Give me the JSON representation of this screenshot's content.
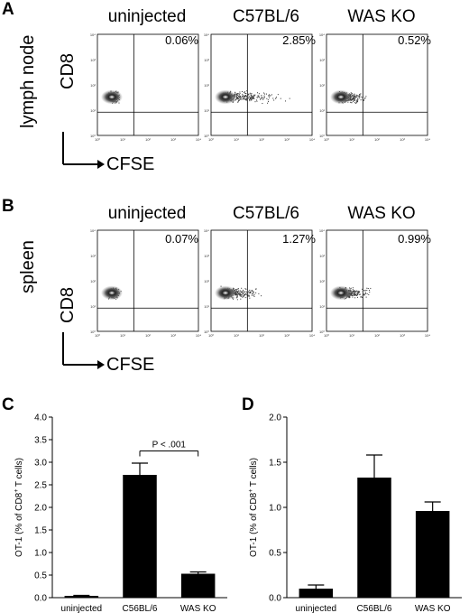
{
  "panelA": {
    "letter": "A",
    "tissue": "lymph node",
    "columns": [
      "uninjected",
      "C57BL/6",
      "WAS KO"
    ],
    "percents": [
      "0.06%",
      "2.85%",
      "0.52%"
    ],
    "y_axis": "CD8",
    "x_axis": "CFSE"
  },
  "panelB": {
    "letter": "B",
    "tissue": "spleen",
    "columns": [
      "uninjected",
      "C57BL/6",
      "WAS KO"
    ],
    "percents": [
      "0.07%",
      "1.27%",
      "0.99%"
    ],
    "y_axis": "CD8",
    "x_axis": "CFSE"
  },
  "flow_ticks": [
    "10⁰",
    "10¹",
    "10²",
    "10³",
    "10⁴"
  ],
  "panelC": {
    "letter": "C"
  },
  "panelD": {
    "letter": "D"
  },
  "chart_data": [
    {
      "type": "bar",
      "panel": "C",
      "categories": [
        "uninjected",
        "C56BL/6",
        "WAS KO"
      ],
      "values": [
        0.04,
        2.72,
        0.53
      ],
      "errors": [
        0.01,
        0.26,
        0.04
      ],
      "ylabel": "OT-1 (% of CD8+ T cells)",
      "ylim": [
        0,
        4.0
      ],
      "yticks": [
        "0.0",
        "0.5",
        "1.0",
        "1.5",
        "2.0",
        "2.5",
        "3.0",
        "3.5",
        "4.0"
      ],
      "annotation": "P < .001"
    },
    {
      "type": "bar",
      "panel": "D",
      "categories": [
        "uninjected",
        "C56BL/6",
        "WAS KO"
      ],
      "values": [
        0.1,
        1.33,
        0.96
      ],
      "errors": [
        0.04,
        0.25,
        0.1
      ],
      "ylabel": "OT-1 (% of CD8+ T cells)",
      "ylim": [
        0,
        2.0
      ],
      "yticks": [
        "0.0",
        "0.5",
        "1.0",
        "1.5",
        "2.0"
      ]
    }
  ]
}
